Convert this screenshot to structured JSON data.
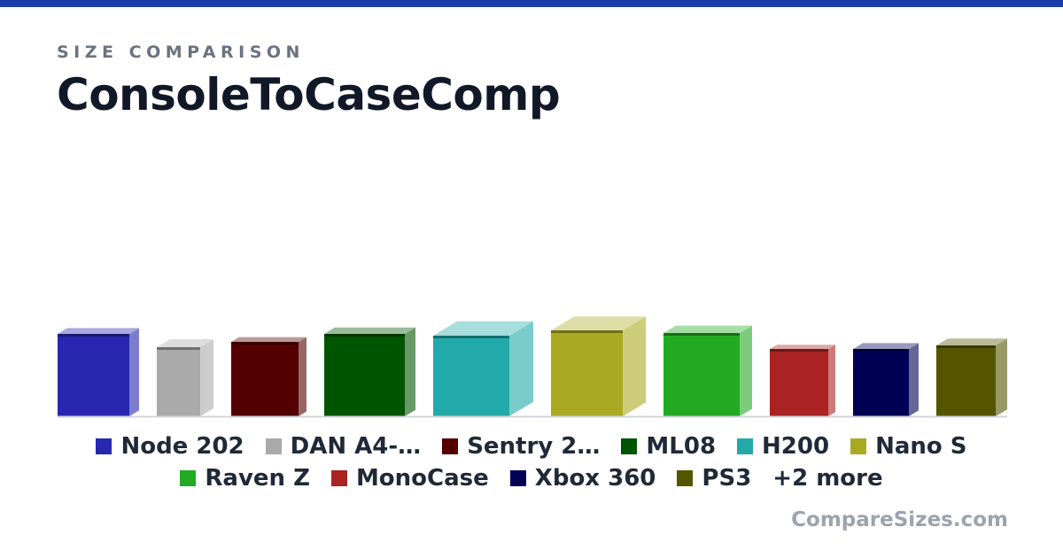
{
  "header": {
    "eyebrow": "SIZE COMPARISON",
    "title": "ConsoleToCaseComp",
    "accent_color": "#1a3faa"
  },
  "chart_data": {
    "type": "bar",
    "style": "3d-box",
    "categories": [
      "Node 202",
      "DAN A4-…",
      "Sentry 2…",
      "ML08",
      "H200",
      "Nano S",
      "Raven Z",
      "MonoCase",
      "Xbox 360",
      "PS3"
    ],
    "series": [
      {
        "values": [
          93,
          78,
          84,
          93,
          91,
          97,
          94,
          76,
          76,
          80
        ],
        "colors": [
          "#2727b0",
          "#aaaaaa",
          "#550000",
          "#005500",
          "#22aaaa",
          "#aaaa22",
          "#22aa22",
          "#aa2222",
          "#000055",
          "#555500"
        ]
      }
    ],
    "legend": {
      "rows": [
        [
          "Node 202",
          "DAN A4-…",
          "Sentry 2…",
          "ML08",
          "H200",
          "Nano S"
        ],
        [
          "Raven Z",
          "MonoCase",
          "Xbox 360",
          "PS3"
        ]
      ],
      "more": "+2 more",
      "placement": "bottom"
    },
    "ylim": [
      0,
      300
    ],
    "grid": false,
    "xlabel": "",
    "ylabel": ""
  },
  "footer": {
    "brand": "CompareSizes.com"
  }
}
